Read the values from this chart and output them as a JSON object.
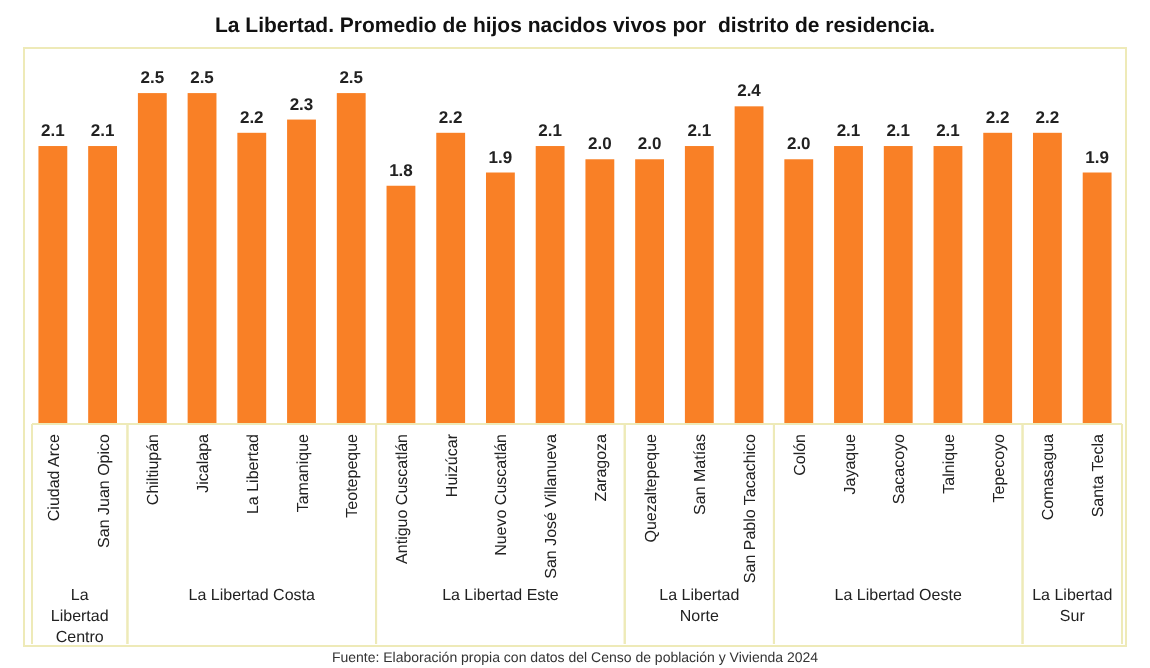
{
  "chart_data": {
    "type": "bar",
    "title": "La Libertad. Promedio de hijos nacidos vivos por  distrito de residencia.",
    "categories": [
      "Ciudad Arce",
      "San Juan Opico",
      "Chiltiupán",
      "Jicalapa",
      "La Libertad",
      "Tamanique",
      "Teotepeque",
      "Antiguo Cuscatlán",
      "Huizúcar",
      "Nuevo Cuscatlán",
      "San José Villanueva",
      "Zaragoza",
      "Quezaltepeque",
      "San Matías",
      "San Pablo Tacachico",
      "Colón",
      "Jayaque",
      "Sacacoyo",
      "Talnique",
      "Tepecoyo",
      "Comasagua",
      "Santa Tecla"
    ],
    "values": [
      2.1,
      2.1,
      2.5,
      2.5,
      2.2,
      2.3,
      2.5,
      1.8,
      2.2,
      1.9,
      2.1,
      2.0,
      2.0,
      2.1,
      2.4,
      2.0,
      2.1,
      2.1,
      2.1,
      2.2,
      2.2,
      1.9
    ],
    "value_labels": [
      "2.1",
      "2.1",
      "2.5",
      "2.5",
      "2.2",
      "2.3",
      "2.5",
      "1.8",
      "2.2",
      "1.9",
      "2.1",
      "2.0",
      "2.0",
      "2.1",
      "2.4",
      "2.0",
      "2.1",
      "2.1",
      "2.1",
      "2.2",
      "2.2",
      "1.9"
    ],
    "color": "#f98026",
    "annotations": [
      "La Libertad Centro",
      "La Libertad Costa",
      "La Libertad Este",
      "La Libertad Norte",
      "La Libertad Oeste",
      "La Libertad Sur",
      "Fuente: Elaboración propia con datos del Censo de población y Vivienda 2024"
    ]
  }
}
